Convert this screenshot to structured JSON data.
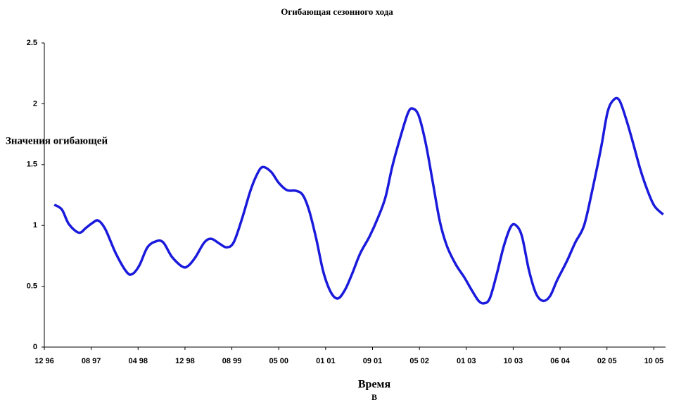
{
  "chart_data": {
    "type": "line",
    "title": "Огибающая сезонного хода",
    "ylabel": "Значения огибающей",
    "xlabel": "Время",
    "caption": "В",
    "color": "#1a1adc",
    "xlim": [
      0,
      106
    ],
    "xticks": [
      {
        "value": 0,
        "label": "12 96"
      },
      {
        "value": 8,
        "label": "08 97"
      },
      {
        "value": 16,
        "label": "04 98"
      },
      {
        "value": 24,
        "label": "12 98"
      },
      {
        "value": 32,
        "label": "08 99"
      },
      {
        "value": 40,
        "label": "05 00"
      },
      {
        "value": 48,
        "label": "01 01"
      },
      {
        "value": 56,
        "label": "09 01"
      },
      {
        "value": 64,
        "label": "05 02"
      },
      {
        "value": 72,
        "label": "01 03"
      },
      {
        "value": 80,
        "label": "10 03"
      },
      {
        "value": 88,
        "label": "06 04"
      },
      {
        "value": 96,
        "label": "02 05"
      },
      {
        "value": 104,
        "label": "10 05"
      }
    ],
    "ylim": [
      0,
      2.5
    ],
    "yticks": [
      0,
      0.5,
      1,
      1.5,
      2,
      2.5
    ],
    "x": [
      1.7,
      3.0,
      4.2,
      5.9,
      7.1,
      8.2,
      9.2,
      10.4,
      12.2,
      14.0,
      15.0,
      16.2,
      17.6,
      19.1,
      20.3,
      21.8,
      23.6,
      24.6,
      25.8,
      27.3,
      28.5,
      29.9,
      31.1,
      32.3,
      33.7,
      35.2,
      36.4,
      37.3,
      38.7,
      40.0,
      41.4,
      42.9,
      44.1,
      45.2,
      46.4,
      47.6,
      48.9,
      50.1,
      51.3,
      52.5,
      53.9,
      55.5,
      56.9,
      58.2,
      59.4,
      60.9,
      62.1,
      62.9,
      63.9,
      65.1,
      66.3,
      67.5,
      68.7,
      70.2,
      71.7,
      72.9,
      74.1,
      75.0,
      76.0,
      77.2,
      78.4,
      79.6,
      80.5,
      81.5,
      82.7,
      83.9,
      85.1,
      86.3,
      87.5,
      89.1,
      90.6,
      92.1,
      93.5,
      95.0,
      96.1,
      97.1,
      98.1,
      99.3,
      100.5,
      101.7,
      102.9,
      104.1,
      105.6
    ],
    "values": [
      1.17,
      1.13,
      1.01,
      0.94,
      0.98,
      1.02,
      1.04,
      0.97,
      0.77,
      0.62,
      0.6,
      0.67,
      0.82,
      0.87,
      0.86,
      0.74,
      0.66,
      0.67,
      0.74,
      0.86,
      0.89,
      0.85,
      0.82,
      0.86,
      1.05,
      1.29,
      1.43,
      1.48,
      1.44,
      1.35,
      1.29,
      1.285,
      1.25,
      1.12,
      0.89,
      0.62,
      0.45,
      0.4,
      0.47,
      0.6,
      0.77,
      0.91,
      1.06,
      1.23,
      1.49,
      1.75,
      1.93,
      1.96,
      1.9,
      1.67,
      1.35,
      1.03,
      0.83,
      0.68,
      0.57,
      0.47,
      0.38,
      0.36,
      0.4,
      0.6,
      0.83,
      0.99,
      1.0,
      0.91,
      0.63,
      0.44,
      0.38,
      0.42,
      0.55,
      0.7,
      0.86,
      1.0,
      1.29,
      1.64,
      1.93,
      2.03,
      2.03,
      1.87,
      1.67,
      1.46,
      1.29,
      1.16,
      1.09
    ]
  }
}
